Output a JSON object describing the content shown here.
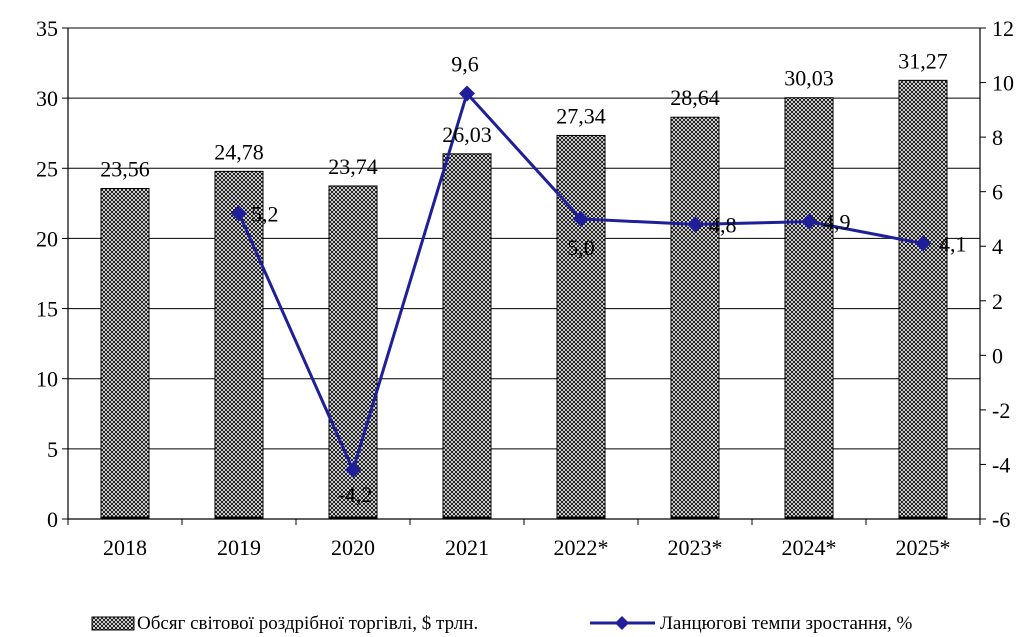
{
  "chart_data": {
    "type": "bar+line",
    "categories": [
      "2018",
      "2019",
      "2020",
      "2021",
      "2022*",
      "2023*",
      "2024*",
      "2025*"
    ],
    "series": [
      {
        "name": "Обсяг світової роздрібної торгівлі, $ трлн.",
        "type": "bar",
        "axis": "left",
        "values": [
          23.56,
          24.78,
          23.74,
          26.03,
          27.34,
          28.64,
          30.03,
          31.27
        ],
        "labels": [
          "23,56",
          "24,78",
          "23,74",
          "26,03",
          "27,34",
          "28,64",
          "30,03",
          "31,27"
        ]
      },
      {
        "name": "Ланцюгові темпи зростання, %",
        "type": "line",
        "axis": "right",
        "values": [
          null,
          5.2,
          -4.2,
          9.6,
          5.0,
          4.8,
          4.9,
          4.1
        ],
        "labels": [
          "",
          "5,2",
          "-4,2",
          "9,6",
          "5,0",
          "4,8",
          "4,9",
          "4,1"
        ]
      }
    ],
    "y_left": {
      "ylim": [
        0,
        35
      ],
      "ticks": [
        "0",
        "5",
        "10",
        "15",
        "20",
        "25",
        "30",
        "35"
      ]
    },
    "y_right": {
      "ylim": [
        -6,
        12
      ],
      "ticks": [
        "-6",
        "-4",
        "-2",
        "0",
        "2",
        "4",
        "6",
        "8",
        "10",
        "12"
      ]
    },
    "legend_position": "bottom",
    "colors": {
      "line": "#1f1f9a",
      "bar_pattern": "#000000",
      "bar_fill": "#ffffff"
    }
  }
}
